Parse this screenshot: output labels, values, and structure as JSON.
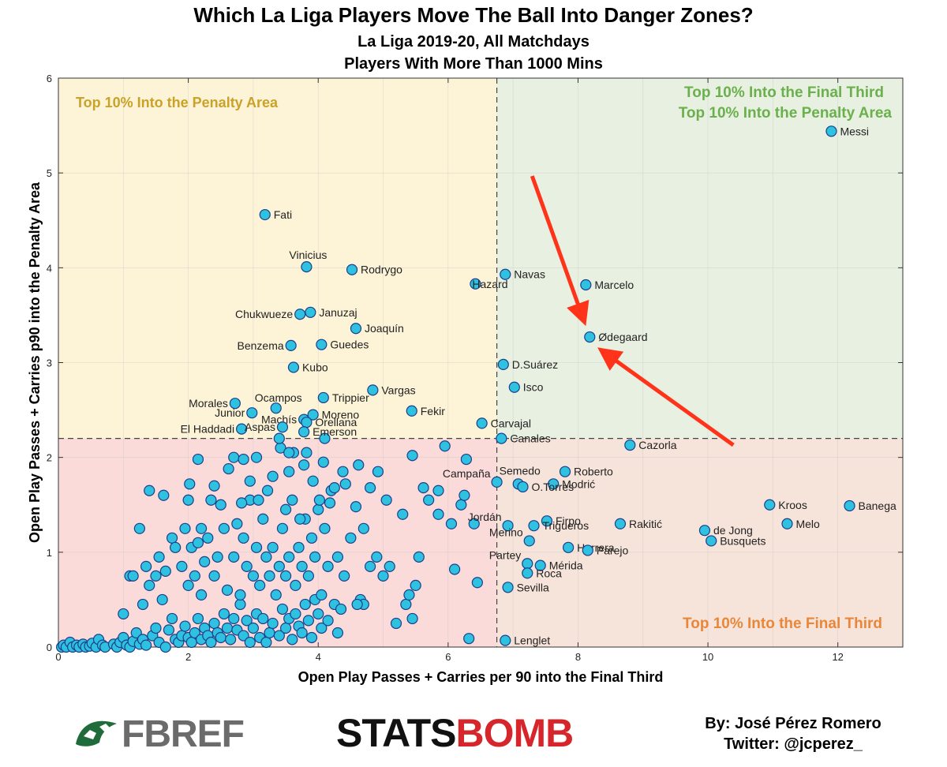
{
  "header": {
    "title": "Which La Liga Players Move The Ball Into Danger Zones?",
    "subtitle1": "La Liga 2019-20, All Matchdays",
    "subtitle2": "Players With More Than 1000 Mins"
  },
  "footer": {
    "fbref_logo_text": "FBREF",
    "statsbomb_part1": "STATS",
    "statsbomb_part2": "BOMB",
    "byline": "By: José Pérez Romero",
    "twitter": "Twitter: @jcperez_"
  },
  "colors": {
    "quadrant_top_left": "#fdf3d7",
    "quadrant_top_right": "#e8f0e1",
    "quadrant_bottom_left": "#fbdada",
    "quadrant_bottom_right": "#f6e3d9",
    "point_fill": "#2fc1e0",
    "point_stroke": "#1b3f8b",
    "arrow": "#ff3319",
    "label_top_left": "#c9a227",
    "label_top_right": "#6ab04c",
    "label_bottom_right": "#e8873a"
  },
  "chart_data": {
    "type": "scatter",
    "xlabel": "Open Play Passes + Carries per 90 into the Final Third",
    "ylabel": "Open Play Passes + Carries p90 into the Penalty Area",
    "xlim": [
      0,
      13
    ],
    "ylim": [
      0,
      6
    ],
    "x_ticks": [
      "0",
      "2",
      "4",
      "6",
      "8",
      "10",
      "12"
    ],
    "y_ticks": [
      "0",
      "1",
      "2",
      "3",
      "4",
      "5",
      "6"
    ],
    "grid": true,
    "threshold_x": 6.75,
    "threshold_y": 2.2,
    "quadrant_labels": {
      "top_left": "Top 10% Into the Penalty Area",
      "top_right_line1": "Top 10% Into the Final Third",
      "top_right_line2": "Top 10% Into the Penalty Area",
      "bottom_right": "Top 10% Into the Final Third"
    },
    "highlight_player": "Ødegaard",
    "labeled_points": [
      {
        "name": "Messi",
        "x": 11.9,
        "y": 5.44
      },
      {
        "name": "Fati",
        "x": 3.18,
        "y": 4.56
      },
      {
        "name": "Vinicius",
        "x": 3.82,
        "y": 4.01
      },
      {
        "name": "Rodrygo",
        "x": 4.52,
        "y": 3.98
      },
      {
        "name": "Navas",
        "x": 6.88,
        "y": 3.93
      },
      {
        "name": "Hazard",
        "x": 6.42,
        "y": 3.83
      },
      {
        "name": "Marcelo",
        "x": 8.12,
        "y": 3.82
      },
      {
        "name": "Chukwueze",
        "x": 3.72,
        "y": 3.51
      },
      {
        "name": "Januzaj",
        "x": 3.88,
        "y": 3.53
      },
      {
        "name": "Joaquín",
        "x": 4.58,
        "y": 3.36
      },
      {
        "name": "Ødegaard",
        "x": 8.18,
        "y": 3.27
      },
      {
        "name": "Benzema",
        "x": 3.58,
        "y": 3.18
      },
      {
        "name": "Guedes",
        "x": 4.05,
        "y": 3.19
      },
      {
        "name": "D.Suárez",
        "x": 6.85,
        "y": 2.98
      },
      {
        "name": "Kubo",
        "x": 3.62,
        "y": 2.95
      },
      {
        "name": "Vargas",
        "x": 4.84,
        "y": 2.71
      },
      {
        "name": "Isco",
        "x": 7.02,
        "y": 2.74
      },
      {
        "name": "Trippier",
        "x": 4.08,
        "y": 2.63
      },
      {
        "name": "Morales",
        "x": 2.72,
        "y": 2.57
      },
      {
        "name": "Ocampos",
        "x": 3.35,
        "y": 2.52
      },
      {
        "name": "Junior",
        "x": 2.98,
        "y": 2.47
      },
      {
        "name": "Fekir",
        "x": 5.44,
        "y": 2.49
      },
      {
        "name": "Moreno",
        "x": 3.92,
        "y": 2.45
      },
      {
        "name": "Machís",
        "x": 3.78,
        "y": 2.4
      },
      {
        "name": "Orellana",
        "x": 3.82,
        "y": 2.37
      },
      {
        "name": "Carvajal",
        "x": 6.52,
        "y": 2.36
      },
      {
        "name": "El Haddadi",
        "x": 2.82,
        "y": 2.3
      },
      {
        "name": "Aspas",
        "x": 3.45,
        "y": 2.32
      },
      {
        "name": "Emerson",
        "x": 3.78,
        "y": 2.27
      },
      {
        "name": "Canales",
        "x": 6.82,
        "y": 2.2
      },
      {
        "name": "Cazorla",
        "x": 8.8,
        "y": 2.13
      },
      {
        "name": "Roberto",
        "x": 7.8,
        "y": 1.85
      },
      {
        "name": "Semedo",
        "x": 7.08,
        "y": 1.72
      },
      {
        "name": "Campaña",
        "x": 6.75,
        "y": 1.74
      },
      {
        "name": "Modrić",
        "x": 7.62,
        "y": 1.72
      },
      {
        "name": "O.Torres",
        "x": 7.15,
        "y": 1.69
      },
      {
        "name": "Kroos",
        "x": 10.95,
        "y": 1.5
      },
      {
        "name": "Banega",
        "x": 12.18,
        "y": 1.49
      },
      {
        "name": "Jordán",
        "x": 6.92,
        "y": 1.28
      },
      {
        "name": "Firpo",
        "x": 7.52,
        "y": 1.33
      },
      {
        "name": "Trigueros",
        "x": 7.32,
        "y": 1.28
      },
      {
        "name": "Rakitić",
        "x": 8.65,
        "y": 1.3
      },
      {
        "name": "Melo",
        "x": 11.22,
        "y": 1.3
      },
      {
        "name": "de Jong",
        "x": 9.95,
        "y": 1.23
      },
      {
        "name": "Busquets",
        "x": 10.05,
        "y": 1.12
      },
      {
        "name": "Merino",
        "x": 7.25,
        "y": 1.12
      },
      {
        "name": "Herrera",
        "x": 7.85,
        "y": 1.05
      },
      {
        "name": "Parejo",
        "x": 8.15,
        "y": 1.02
      },
      {
        "name": "Partey",
        "x": 7.22,
        "y": 0.88
      },
      {
        "name": "Mérida",
        "x": 7.42,
        "y": 0.86
      },
      {
        "name": "Roca",
        "x": 7.22,
        "y": 0.78
      },
      {
        "name": "Sevilla",
        "x": 6.92,
        "y": 0.63
      },
      {
        "name": "Lenglet",
        "x": 6.88,
        "y": 0.07
      }
    ],
    "unlabeled_points": [
      [
        0.05,
        0.0
      ],
      [
        0.08,
        0.02
      ],
      [
        0.12,
        0.0
      ],
      [
        0.18,
        0.05
      ],
      [
        0.22,
        0.0
      ],
      [
        0.28,
        0.02
      ],
      [
        0.32,
        0.0
      ],
      [
        0.38,
        0.03
      ],
      [
        0.42,
        0.0
      ],
      [
        0.48,
        0.01
      ],
      [
        0.52,
        0.04
      ],
      [
        0.58,
        0.0
      ],
      [
        0.62,
        0.08
      ],
      [
        0.68,
        0.02
      ],
      [
        0.72,
        0.0
      ],
      [
        0.85,
        0.03
      ],
      [
        0.9,
        0.0
      ],
      [
        0.95,
        0.05
      ],
      [
        1.0,
        0.1
      ],
      [
        1.05,
        0.02
      ],
      [
        1.1,
        0.0
      ],
      [
        1.15,
        0.06
      ],
      [
        1.2,
        0.15
      ],
      [
        1.25,
        0.03
      ],
      [
        1.3,
        0.08
      ],
      [
        1.35,
        0.02
      ],
      [
        1.45,
        0.12
      ],
      [
        1.5,
        0.2
      ],
      [
        1.55,
        0.05
      ],
      [
        1.65,
        0.0
      ],
      [
        1.7,
        0.18
      ],
      [
        1.75,
        0.3
      ],
      [
        1.8,
        0.08
      ],
      [
        1.85,
        0.05
      ],
      [
        1.9,
        0.12
      ],
      [
        1.95,
        0.22
      ],
      [
        2.0,
        0.1
      ],
      [
        2.05,
        0.05
      ],
      [
        2.1,
        0.15
      ],
      [
        2.15,
        0.3
      ],
      [
        2.2,
        0.08
      ],
      [
        2.25,
        0.2
      ],
      [
        2.3,
        0.12
      ],
      [
        2.35,
        0.05
      ],
      [
        2.4,
        0.25
      ],
      [
        2.45,
        0.15
      ],
      [
        2.5,
        0.1
      ],
      [
        2.55,
        0.35
      ],
      [
        2.6,
        0.2
      ],
      [
        2.65,
        0.08
      ],
      [
        2.7,
        0.3
      ],
      [
        2.75,
        0.18
      ],
      [
        2.8,
        0.45
      ],
      [
        2.85,
        0.12
      ],
      [
        2.9,
        0.28
      ],
      [
        2.95,
        0.05
      ],
      [
        3.0,
        0.2
      ],
      [
        3.05,
        0.35
      ],
      [
        3.1,
        0.1
      ],
      [
        3.15,
        0.3
      ],
      [
        3.2,
        0.05
      ],
      [
        3.25,
        0.15
      ],
      [
        3.3,
        0.25
      ],
      [
        3.4,
        0.12
      ],
      [
        3.45,
        0.4
      ],
      [
        3.5,
        0.2
      ],
      [
        3.55,
        0.3
      ],
      [
        3.6,
        0.08
      ],
      [
        3.65,
        0.35
      ],
      [
        3.7,
        0.22
      ],
      [
        3.75,
        0.15
      ],
      [
        3.8,
        0.45
      ],
      [
        3.85,
        0.28
      ],
      [
        3.9,
        0.1
      ],
      [
        3.95,
        0.5
      ],
      [
        4.0,
        0.35
      ],
      [
        4.05,
        0.2
      ],
      [
        4.15,
        0.28
      ],
      [
        4.25,
        0.45
      ],
      [
        4.3,
        0.15
      ],
      [
        4.35,
        0.4
      ],
      [
        4.65,
        0.5
      ],
      [
        4.7,
        0.45
      ],
      [
        5.2,
        0.25
      ],
      [
        5.35,
        0.45
      ],
      [
        5.45,
        0.3
      ],
      [
        5.5,
        0.65
      ],
      [
        1.0,
        0.35
      ],
      [
        1.1,
        0.75
      ],
      [
        1.15,
        0.75
      ],
      [
        1.25,
        1.25
      ],
      [
        1.3,
        0.45
      ],
      [
        1.35,
        0.85
      ],
      [
        1.4,
        0.65
      ],
      [
        1.5,
        0.75
      ],
      [
        1.55,
        0.95
      ],
      [
        1.6,
        0.5
      ],
      [
        1.65,
        0.8
      ],
      [
        1.75,
        1.15
      ],
      [
        1.8,
        1.05
      ],
      [
        1.9,
        0.85
      ],
      [
        2.0,
        0.65
      ],
      [
        2.05,
        1.05
      ],
      [
        2.1,
        0.75
      ],
      [
        2.15,
        1.1
      ],
      [
        2.2,
        0.55
      ],
      [
        2.25,
        0.9
      ],
      [
        2.3,
        1.15
      ],
      [
        2.35,
        1.55
      ],
      [
        2.4,
        0.75
      ],
      [
        2.45,
        0.95
      ],
      [
        2.55,
        1.25
      ],
      [
        2.6,
        0.6
      ],
      [
        2.7,
        0.95
      ],
      [
        2.75,
        1.3
      ],
      [
        2.8,
        0.55
      ],
      [
        2.85,
        1.15
      ],
      [
        2.9,
        0.85
      ],
      [
        2.95,
        1.55
      ],
      [
        3.0,
        0.75
      ],
      [
        3.05,
        1.05
      ],
      [
        3.1,
        0.65
      ],
      [
        3.15,
        1.35
      ],
      [
        3.2,
        0.95
      ],
      [
        3.25,
        0.75
      ],
      [
        3.3,
        1.05
      ],
      [
        3.35,
        0.55
      ],
      [
        3.4,
        0.85
      ],
      [
        3.45,
        1.25
      ],
      [
        3.5,
        0.75
      ],
      [
        3.55,
        0.95
      ],
      [
        3.6,
        1.55
      ],
      [
        3.65,
        0.65
      ],
      [
        3.7,
        1.05
      ],
      [
        3.75,
        0.85
      ],
      [
        3.8,
        1.35
      ],
      [
        3.85,
        0.75
      ],
      [
        3.9,
        1.15
      ],
      [
        3.95,
        0.95
      ],
      [
        4.0,
        1.45
      ],
      [
        4.05,
        0.55
      ],
      [
        4.1,
        1.25
      ],
      [
        4.15,
        0.85
      ],
      [
        4.2,
        1.65
      ],
      [
        4.3,
        0.95
      ],
      [
        4.4,
        0.75
      ],
      [
        4.5,
        1.15
      ],
      [
        4.6,
        0.45
      ],
      [
        4.7,
        1.25
      ],
      [
        4.8,
        0.85
      ],
      [
        4.9,
        0.95
      ],
      [
        5.0,
        0.75
      ],
      [
        5.1,
        0.85
      ],
      [
        5.3,
        1.4
      ],
      [
        5.4,
        0.55
      ],
      [
        5.55,
        0.95
      ],
      [
        5.7,
        1.55
      ],
      [
        5.85,
        1.4
      ],
      [
        6.05,
        1.3
      ],
      [
        6.1,
        0.82
      ],
      [
        6.2,
        1.5
      ],
      [
        6.25,
        1.6
      ],
      [
        6.4,
        1.3
      ],
      [
        6.45,
        0.68
      ],
      [
        6.28,
        1.98
      ],
      [
        6.32,
        0.09
      ],
      [
        5.95,
        2.12
      ],
      [
        5.45,
        2.02
      ],
      [
        5.62,
        1.68
      ],
      [
        5.85,
        1.65
      ],
      [
        1.4,
        1.65
      ],
      [
        1.62,
        1.6
      ],
      [
        1.95,
        1.25
      ],
      [
        2.0,
        1.55
      ],
      [
        2.02,
        1.72
      ],
      [
        2.15,
        1.98
      ],
      [
        2.2,
        1.25
      ],
      [
        2.4,
        1.7
      ],
      [
        2.5,
        1.5
      ],
      [
        2.62,
        1.88
      ],
      [
        2.7,
        2.0
      ],
      [
        2.82,
        1.52
      ],
      [
        2.85,
        1.98
      ],
      [
        2.95,
        1.75
      ],
      [
        3.05,
        2.0
      ],
      [
        3.08,
        1.55
      ],
      [
        3.22,
        1.65
      ],
      [
        3.3,
        1.8
      ],
      [
        3.42,
        2.1
      ],
      [
        3.5,
        1.45
      ],
      [
        3.55,
        1.85
      ],
      [
        3.62,
        2.05
      ],
      [
        3.72,
        1.35
      ],
      [
        3.78,
        1.92
      ],
      [
        3.82,
        2.05
      ],
      [
        3.92,
        1.75
      ],
      [
        4.02,
        1.55
      ],
      [
        4.08,
        1.95
      ],
      [
        4.18,
        1.52
      ],
      [
        4.25,
        1.68
      ],
      [
        4.38,
        1.85
      ],
      [
        4.42,
        1.72
      ],
      [
        4.58,
        1.48
      ],
      [
        4.62,
        1.92
      ],
      [
        4.8,
        1.68
      ],
      [
        4.92,
        1.85
      ],
      [
        5.05,
        1.55
      ],
      [
        3.4,
        2.2
      ],
      [
        3.55,
        2.05
      ],
      [
        4.1,
        2.2
      ]
    ]
  }
}
